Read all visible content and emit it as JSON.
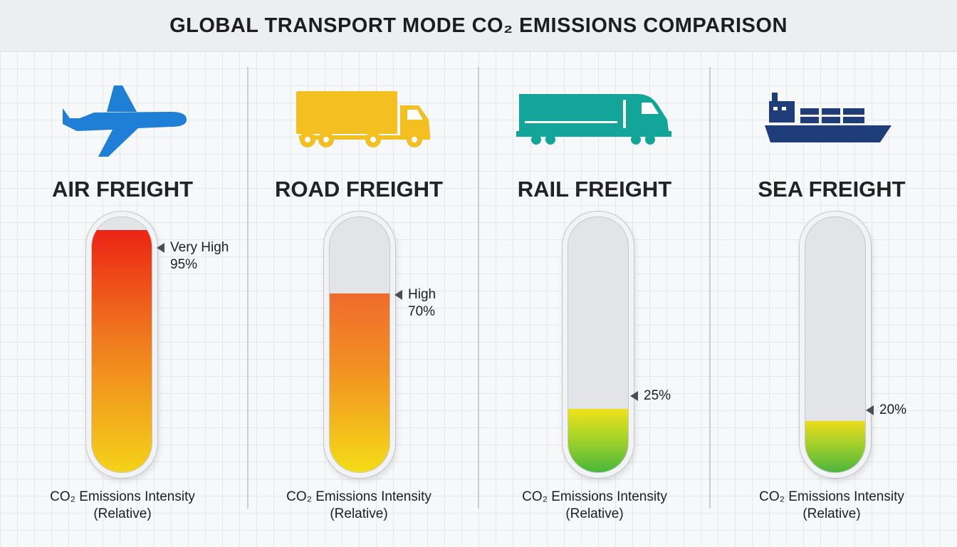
{
  "title": "GLOBAL TRANSPORT MODE CO₂ EMISSIONS COMPARISON",
  "chart_data": {
    "type": "bar",
    "title": "GLOBAL TRANSPORT MODE CO₂ EMISSIONS COMPARISON",
    "categories": [
      "AIR FREIGHT",
      "ROAD FREIGHT",
      "RAIL FREIGHT",
      "SEA FREIGHT"
    ],
    "values": [
      95,
      70,
      25,
      20
    ],
    "unit": "%",
    "ylim": [
      0,
      100
    ],
    "ylabel": "CO₂ Emissions Intensity (Relative)",
    "grid": true
  },
  "panels": [
    {
      "label": "AIR FREIGHT",
      "value": 95,
      "value_text": "95%",
      "level": "Very High",
      "caption_line1": "CO₂ Emissions Intensity",
      "caption_line2": "(Relative)",
      "icon": "airplane-icon",
      "icon_color": "#1f7fd6",
      "fill_colors": [
        "#f5d21a",
        "#f07a1e",
        "#ec2414"
      ]
    },
    {
      "label": "ROAD FREIGHT",
      "value": 70,
      "value_text": "70%",
      "level": "High",
      "caption_line1": "CO₂ Emissions Intensity",
      "caption_line2": "(Relative)",
      "icon": "truck-icon",
      "icon_color": "#f3bf21",
      "fill_colors": [
        "#f4dc17",
        "#f39422",
        "#ef6a2d"
      ]
    },
    {
      "label": "RAIL FREIGHT",
      "value": 25,
      "value_text": "25%",
      "level": "",
      "caption_line1": "CO₂ Emissions Intensity",
      "caption_line2": "(Relative)",
      "icon": "train-icon",
      "icon_color": "#14a59a",
      "fill_colors": [
        "#47b83c",
        "#a8d428",
        "#f0e21a"
      ]
    },
    {
      "label": "SEA FREIGHT",
      "value": 20,
      "value_text": "20%",
      "level": "",
      "caption_line1": "CO₂ Emissions Intensity",
      "caption_line2": "(Relative)",
      "icon": "ship-icon",
      "icon_color": "#1f3d78",
      "fill_colors": [
        "#4cb63a",
        "#a4cf2c",
        "#ecdc1a"
      ]
    }
  ]
}
